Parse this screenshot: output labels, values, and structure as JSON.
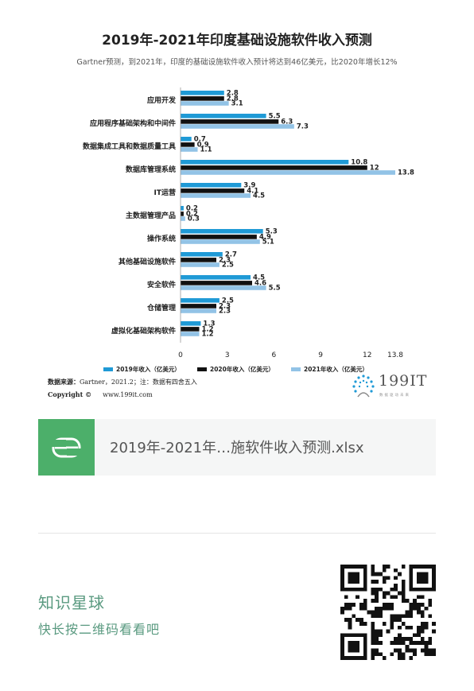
{
  "header": {
    "title": "2019年-2021年印度基础设施软件收入预测",
    "subtitle": "Gartner预测，到2021年，印度的基础设施软件收入预计将达到46亿美元，比2020年增长12%"
  },
  "chart_data": {
    "type": "bar",
    "orientation": "horizontal",
    "categories": [
      "应用开发",
      "应用程序基础架构和中间件",
      "数据集成工具和数据质量工具",
      "数据库管理系统",
      "IT运营",
      "主数据管理产品",
      "操作系统",
      "其他基础设施软件",
      "安全软件",
      "仓储管理",
      "虚拟化基础架构软件"
    ],
    "series": [
      {
        "name": "2019年收入（亿美元）",
        "values": [
          2.8,
          5.5,
          0.7,
          10.8,
          3.9,
          0.2,
          5.3,
          2.7,
          4.5,
          2.5,
          1.3
        ],
        "labels": [
          "2.8",
          "5.5",
          "0.7",
          "10.8",
          "3.9",
          "0.2",
          "5.3",
          "2.7",
          "4.5",
          "2.5",
          "1.3"
        ],
        "color": "#1f9ad6"
      },
      {
        "name": "2020年收入（亿美元）",
        "values": [
          2.8,
          6.3,
          0.9,
          12,
          4.1,
          0.2,
          4.9,
          2.3,
          4.6,
          2.3,
          1.2
        ],
        "labels": [
          "2.8",
          "6.3",
          "0.9",
          "12",
          "4.1",
          "0.2",
          "4.9",
          "2.3",
          "4.6",
          "2.3",
          "1.2"
        ],
        "color": "#111111"
      },
      {
        "name": "2021年收入（亿美元）",
        "values": [
          3.1,
          7.3,
          1.1,
          13.8,
          4.5,
          0.3,
          5.1,
          2.5,
          5.5,
          2.3,
          1.2
        ],
        "labels": [
          "3.1",
          "7.3",
          "1.1",
          "13.8",
          "4.5",
          "0.3",
          "5.1",
          "2.5",
          "5.5",
          "2.3",
          "1.2"
        ],
        "color": "#92c3e6"
      }
    ],
    "xticks": [
      0,
      3,
      6,
      9,
      12,
      13.8
    ],
    "xtick_labels": [
      "0",
      "3",
      "6",
      "9",
      "12",
      "13.8"
    ],
    "xlim": [
      0,
      13.8
    ],
    "legend_position": "bottom"
  },
  "footer": {
    "source_label": "数据来源：",
    "source_text": "Gartner，2021.2；注：数据有四舍五入",
    "copyright_label": "Copyright ©",
    "copyright_url": "www.199it.com",
    "logo_text": "199IT",
    "logo_sub": "数据驱动未来"
  },
  "file": {
    "icon_letter": "S",
    "name": "2019年-2021年…施软件收入预测.xlsx",
    "icon_color": "#4caf6a"
  },
  "promo": {
    "title": "知识星球",
    "subtitle": "快长按二维码看看吧"
  },
  "colors": {
    "accent": "#5a9a80",
    "bar_2019": "#1f9ad6",
    "bar_2020": "#111111",
    "bar_2021": "#92c3e6"
  }
}
